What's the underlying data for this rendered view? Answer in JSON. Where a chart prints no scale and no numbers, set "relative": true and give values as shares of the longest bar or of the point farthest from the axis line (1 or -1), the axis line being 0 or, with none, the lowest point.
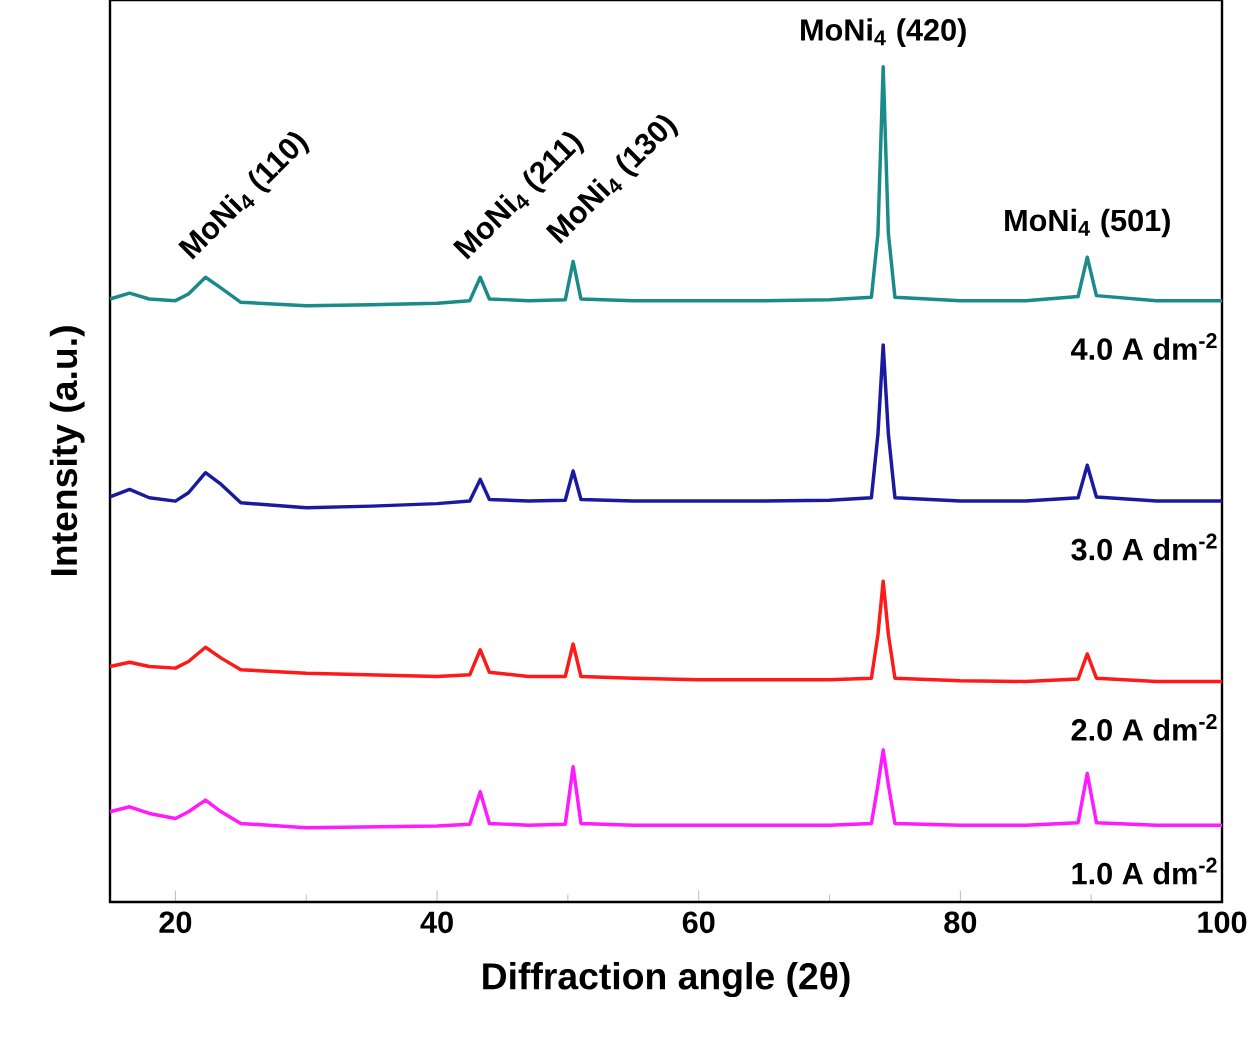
{
  "chart_data": {
    "type": "line",
    "relative": true,
    "xlabel": "Diffraction angle (2θ)",
    "ylabel": "Intensity (a.u.)",
    "xlim": [
      15,
      100
    ],
    "xticks": [
      20,
      40,
      60,
      80,
      100
    ],
    "legend": false,
    "grid": false,
    "marker": "none",
    "line_style": "solid",
    "x": [
      15,
      16.5,
      18,
      20,
      21,
      22.3,
      23.5,
      25,
      30,
      35,
      40,
      42.5,
      43.3,
      44,
      47,
      49.8,
      50.4,
      51,
      55,
      60,
      65,
      70,
      73.2,
      73.7,
      74.1,
      74.5,
      75,
      80,
      85,
      89,
      89.7,
      90.4,
      95,
      100
    ],
    "series": [
      {
        "name": "4.0 A dm$^{-2}$",
        "color": "#1a8a8a",
        "values": [
          0.722,
          0.729,
          0.722,
          0.72,
          0.728,
          0.748,
          0.735,
          0.718,
          0.714,
          0.715,
          0.717,
          0.72,
          0.748,
          0.722,
          0.72,
          0.721,
          0.767,
          0.722,
          0.72,
          0.72,
          0.72,
          0.721,
          0.724,
          0.8,
          1.0,
          0.8,
          0.724,
          0.72,
          0.72,
          0.725,
          0.772,
          0.726,
          0.72,
          0.72
        ]
      },
      {
        "name": "3.0 A dm$^{-2}$",
        "color": "#1a1aa0",
        "values": [
          0.485,
          0.494,
          0.484,
          0.48,
          0.49,
          0.514,
          0.5,
          0.478,
          0.472,
          0.474,
          0.477,
          0.48,
          0.506,
          0.482,
          0.48,
          0.481,
          0.516,
          0.482,
          0.48,
          0.48,
          0.48,
          0.481,
          0.484,
          0.56,
          0.667,
          0.56,
          0.484,
          0.48,
          0.48,
          0.484,
          0.523,
          0.485,
          0.48,
          0.48
        ]
      },
      {
        "name": "2.0 A dm$^{-2}$",
        "color": "#ff1a1a",
        "values": [
          0.282,
          0.287,
          0.282,
          0.28,
          0.288,
          0.305,
          0.292,
          0.278,
          0.274,
          0.272,
          0.27,
          0.272,
          0.302,
          0.275,
          0.27,
          0.27,
          0.309,
          0.27,
          0.268,
          0.266,
          0.266,
          0.266,
          0.268,
          0.32,
          0.384,
          0.32,
          0.268,
          0.265,
          0.264,
          0.267,
          0.297,
          0.268,
          0.264,
          0.264
        ]
      },
      {
        "name": "1.0 A dm$^{-2}$",
        "color": "#ff1aff",
        "values": [
          0.108,
          0.114,
          0.106,
          0.1,
          0.108,
          0.122,
          0.108,
          0.094,
          0.089,
          0.09,
          0.091,
          0.093,
          0.132,
          0.094,
          0.092,
          0.093,
          0.162,
          0.094,
          0.092,
          0.092,
          0.092,
          0.092,
          0.094,
          0.14,
          0.182,
          0.14,
          0.094,
          0.092,
          0.092,
          0.095,
          0.154,
          0.095,
          0.092,
          0.092
        ]
      }
    ],
    "annotations": [
      {
        "text": "MoNi$_{4}$ (110)",
        "x": 22.3,
        "y": 0.748
      },
      {
        "text": "MoNi$_{4}$ (211)",
        "x": 43.3,
        "y": 0.748
      },
      {
        "text": "MoNi$_{4}$ (130)",
        "x": 50.4,
        "y": 0.767
      },
      {
        "text": "MoNi$_{4}$ (420)",
        "x": 74.1,
        "y": 1.0
      },
      {
        "text": "MoNi$_{4}$ (501)",
        "x": 89.7,
        "y": 0.772
      }
    ]
  }
}
